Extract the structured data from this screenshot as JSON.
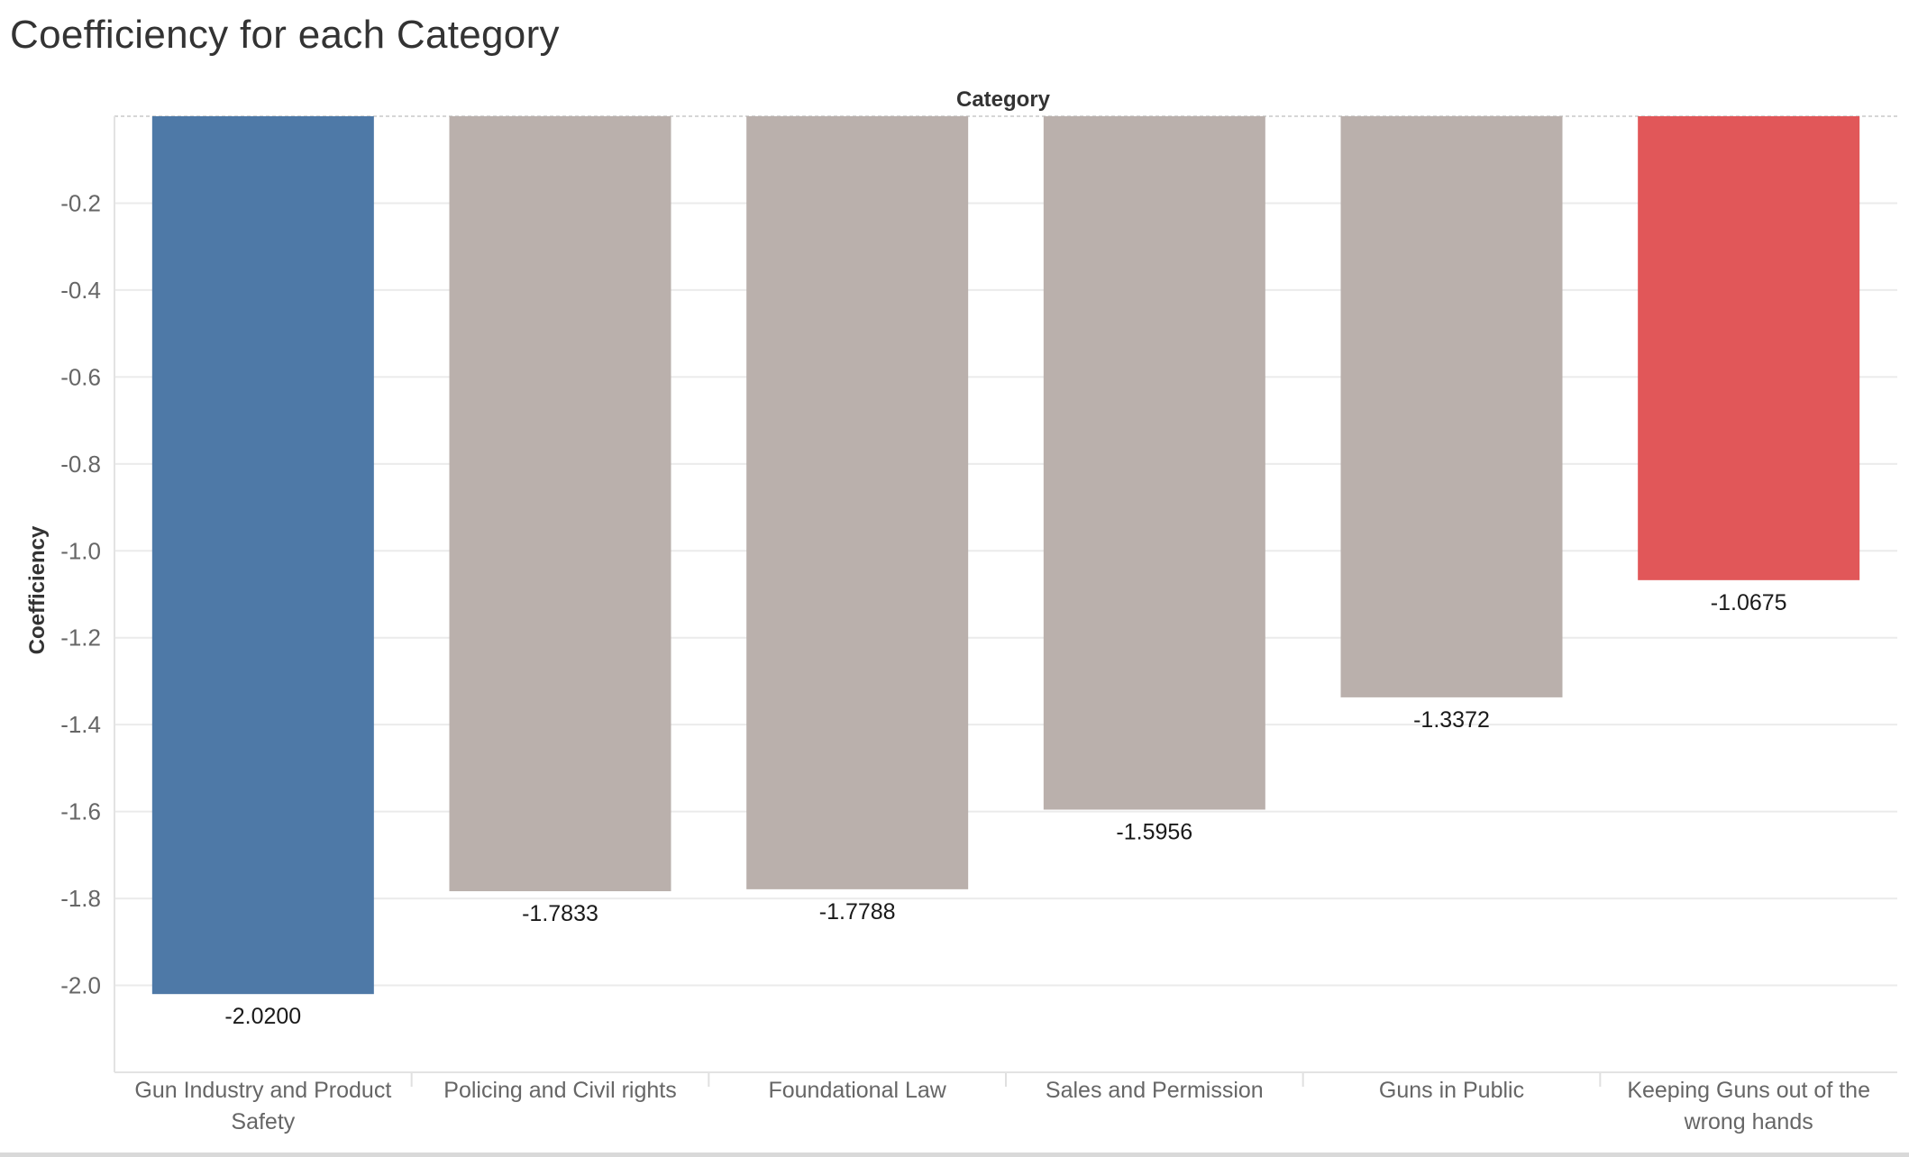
{
  "chart_data": {
    "type": "bar",
    "title": "Coefficiency for each Category",
    "header_label": "Category",
    "ylabel": "Coefficiency",
    "ylim": [
      -2.2,
      0.0
    ],
    "yticks": [
      -0.2,
      -0.4,
      -0.6,
      -0.8,
      -1.0,
      -1.2,
      -1.4,
      -1.6,
      -1.8,
      -2.0
    ],
    "ytick_labels": [
      "-0.2",
      "-0.4",
      "-0.6",
      "-0.8",
      "-1.0",
      "-1.2",
      "-1.4",
      "-1.6",
      "-1.8",
      "-2.0"
    ],
    "grid": true,
    "categories": [
      [
        "Gun Industry and Product",
        "Safety"
      ],
      [
        "Policing and Civil rights"
      ],
      [
        "Foundational Law"
      ],
      [
        "Sales and Permission"
      ],
      [
        "Guns in Public"
      ],
      [
        "Keeping Guns out of the",
        "wrong hands"
      ]
    ],
    "values": [
      -2.02,
      -1.7833,
      -1.7788,
      -1.5956,
      -1.3372,
      -1.0675
    ],
    "value_labels": [
      "-2.0200",
      "-1.7833",
      "-1.7788",
      "-1.5956",
      "-1.3372",
      "-1.0675"
    ],
    "colors": [
      "#4e79a7",
      "#bab0ac",
      "#bab0ac",
      "#bab0ac",
      "#bab0ac",
      "#e15759"
    ]
  }
}
